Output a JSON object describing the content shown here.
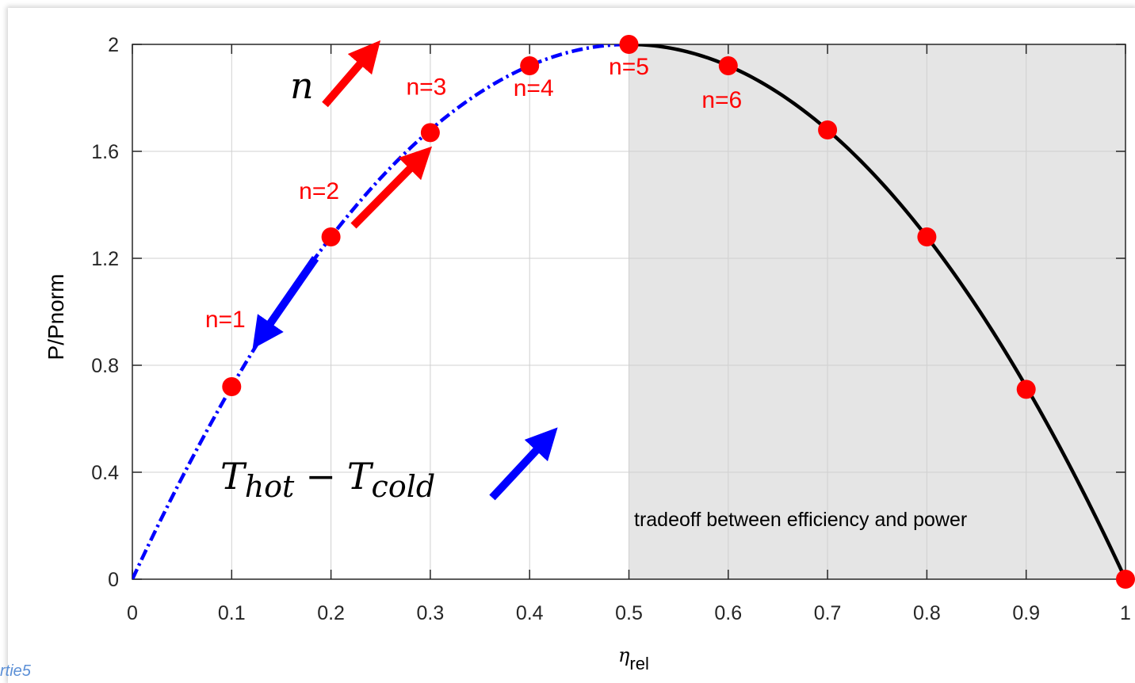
{
  "chart_data": {
    "type": "line",
    "xlabel": "η",
    "xlabel_sub": "rel",
    "ylabel": "P/Pnorm",
    "xlim": [
      0,
      1
    ],
    "ylim": [
      0,
      2
    ],
    "x_ticks": [
      "0",
      "0.1",
      "0.2",
      "0.3",
      "0.4",
      "0.5",
      "0.6",
      "0.7",
      "0.8",
      "0.9",
      "1"
    ],
    "y_ticks": [
      "0",
      "0.4",
      "0.8",
      "1.2",
      "1.6",
      "2"
    ],
    "grid": true,
    "curve": {
      "formula": "8*x*(1-x)",
      "dashed_range": [
        0,
        0.5
      ],
      "solid_range": [
        0.5,
        1
      ],
      "dashed_color": "#0000ff",
      "solid_color": "#000000"
    },
    "shaded_region": {
      "x": [
        0.5,
        1
      ],
      "color": "#e5e5e5",
      "text": "tradeoff between efficiency and power"
    },
    "points": {
      "color": "#ff0000",
      "x": [
        0.1,
        0.2,
        0.3,
        0.4,
        0.5,
        0.6,
        0.7,
        0.8,
        0.9,
        1.0
      ],
      "y": [
        0.72,
        1.28,
        1.67,
        1.92,
        2.0,
        1.92,
        1.68,
        1.28,
        0.71,
        0.0
      ]
    },
    "point_labels": [
      {
        "text": "n=1",
        "x": 0.1
      },
      {
        "text": "n=2",
        "x": 0.2
      },
      {
        "text": "n=3",
        "x": 0.3
      },
      {
        "text": "n=4",
        "x": 0.4
      },
      {
        "text": "n=5",
        "x": 0.5
      },
      {
        "text": "n=6",
        "x": 0.6
      }
    ],
    "annotations": {
      "n_symbol": "n",
      "temp_main_1": "T",
      "temp_sub_1": "hot",
      "temp_minus": "−",
      "temp_main_2": "T",
      "temp_sub_2": "cold"
    },
    "arrow_colors": {
      "red": "#ff0000",
      "blue": "#0000ff"
    }
  },
  "footer": {
    "text": "rtie5"
  }
}
